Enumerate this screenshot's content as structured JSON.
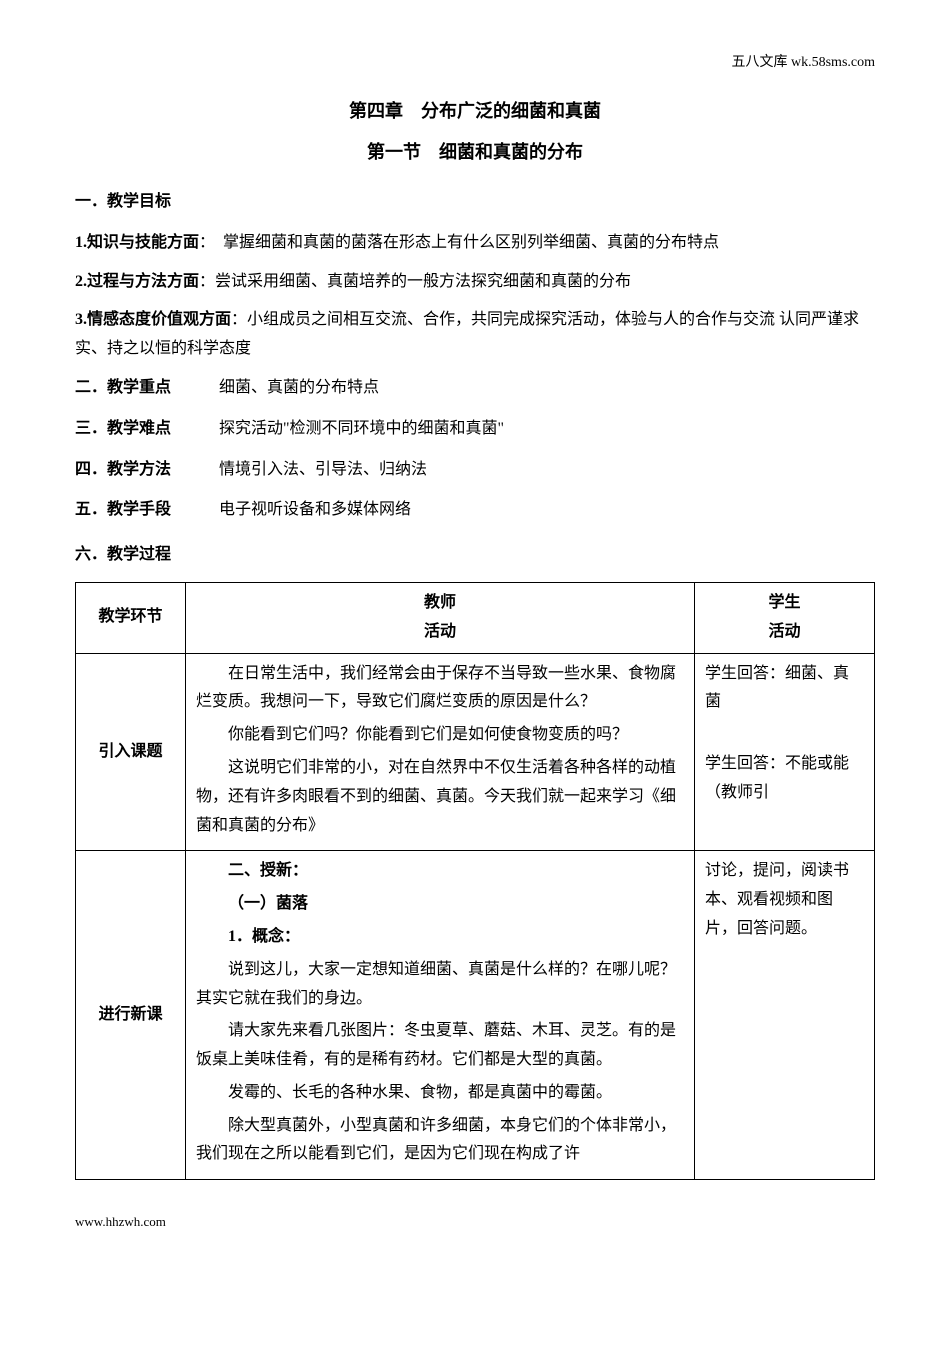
{
  "header": {
    "watermark": "五八文库 wk.58sms.com"
  },
  "titles": {
    "chapter": "第四章　分布广泛的细菌和真菌",
    "section": "第一节　细菌和真菌的分布"
  },
  "goals": {
    "heading": "一．教学目标",
    "items": [
      {
        "label": "1.知识与技能方面",
        "text": "：　掌握细菌和真菌的菌落在形态上有什么区别列举细菌、真菌的分布特点"
      },
      {
        "label": "2.过程与方法方面",
        "text": "：尝试采用细菌、真菌培养的一般方法探究细菌和真菌的分布"
      },
      {
        "label": "3.情感态度价值观方面",
        "text": "：小组成员之间相互交流、合作，共同完成探究活动，体验与人的合作与交流 认同严谨求实、持之以恒的科学态度"
      }
    ]
  },
  "meta": [
    {
      "label": "二．教学重点",
      "text": "细菌、真菌的分布特点"
    },
    {
      "label": "三．教学难点",
      "text": "探究活动\"检测不同环境中的细菌和真菌\""
    },
    {
      "label": "四．教学方法",
      "text": "情境引入法、引导法、归纳法"
    },
    {
      "label": "五．教学手段",
      "text": "电子视听设备和多媒体网络"
    }
  ],
  "process_heading": "六．教学过程",
  "table": {
    "headers": {
      "stage": "教学环节",
      "teacher_top": "教师",
      "teacher_bottom": "活动",
      "student_top": "学生",
      "student_bottom": "活动"
    },
    "rows": [
      {
        "stage": "引入课题",
        "teacher": [
          {
            "cls": "para",
            "text": "在日常生活中，我们经常会由于保存不当导致一些水果、食物腐烂变质。我想问一下，导致它们腐烂变质的原因是什么？"
          },
          {
            "cls": "para",
            "text": "你能看到它们吗？你能看到它们是如何使食物变质的吗？"
          },
          {
            "cls": "para",
            "text": "这说明它们非常的小，对在自然界中不仅生活着各种各样的动植物，还有许多肉眼看不到的细菌、真菌。今天我们就一起来学习《细菌和真菌的分布》"
          }
        ],
        "student": [
          {
            "cls": "para-noindent",
            "text": "学生回答：细菌、真菌"
          },
          {
            "cls": "para-noindent",
            "text": ""
          },
          {
            "cls": "para-noindent",
            "text": "学生回答：不能或能（教师引"
          }
        ]
      },
      {
        "stage": "进行新课",
        "teacher": [
          {
            "cls": "para bold",
            "text": "二、授新："
          },
          {
            "cls": "para bold",
            "text": "（一）菌落"
          },
          {
            "cls": "para bold",
            "text": "1．概念："
          },
          {
            "cls": "para",
            "text": "说到这儿，大家一定想知道细菌、真菌是什么样的？在哪儿呢？其实它就在我们的身边。"
          },
          {
            "cls": "para",
            "text": "请大家先来看几张图片：冬虫夏草、蘑菇、木耳、灵芝。有的是饭桌上美味佳肴，有的是稀有药材。它们都是大型的真菌。"
          },
          {
            "cls": "para",
            "text": "发霉的、长毛的各种水果、食物，都是真菌中的霉菌。"
          },
          {
            "cls": "para",
            "text": "除大型真菌外，小型真菌和许多细菌，本身它们的个体非常小，我们现在之所以能看到它们，是因为它们现在构成了许"
          }
        ],
        "student": [
          {
            "cls": "para-noindent",
            "text": "讨论，提问，阅读书本、观看视频和图片，回答问题。"
          }
        ]
      }
    ]
  },
  "footer": {
    "url": "www.hhzwh.com"
  },
  "colors": {
    "text": "#000000",
    "background": "#ffffff",
    "border": "#000000"
  }
}
